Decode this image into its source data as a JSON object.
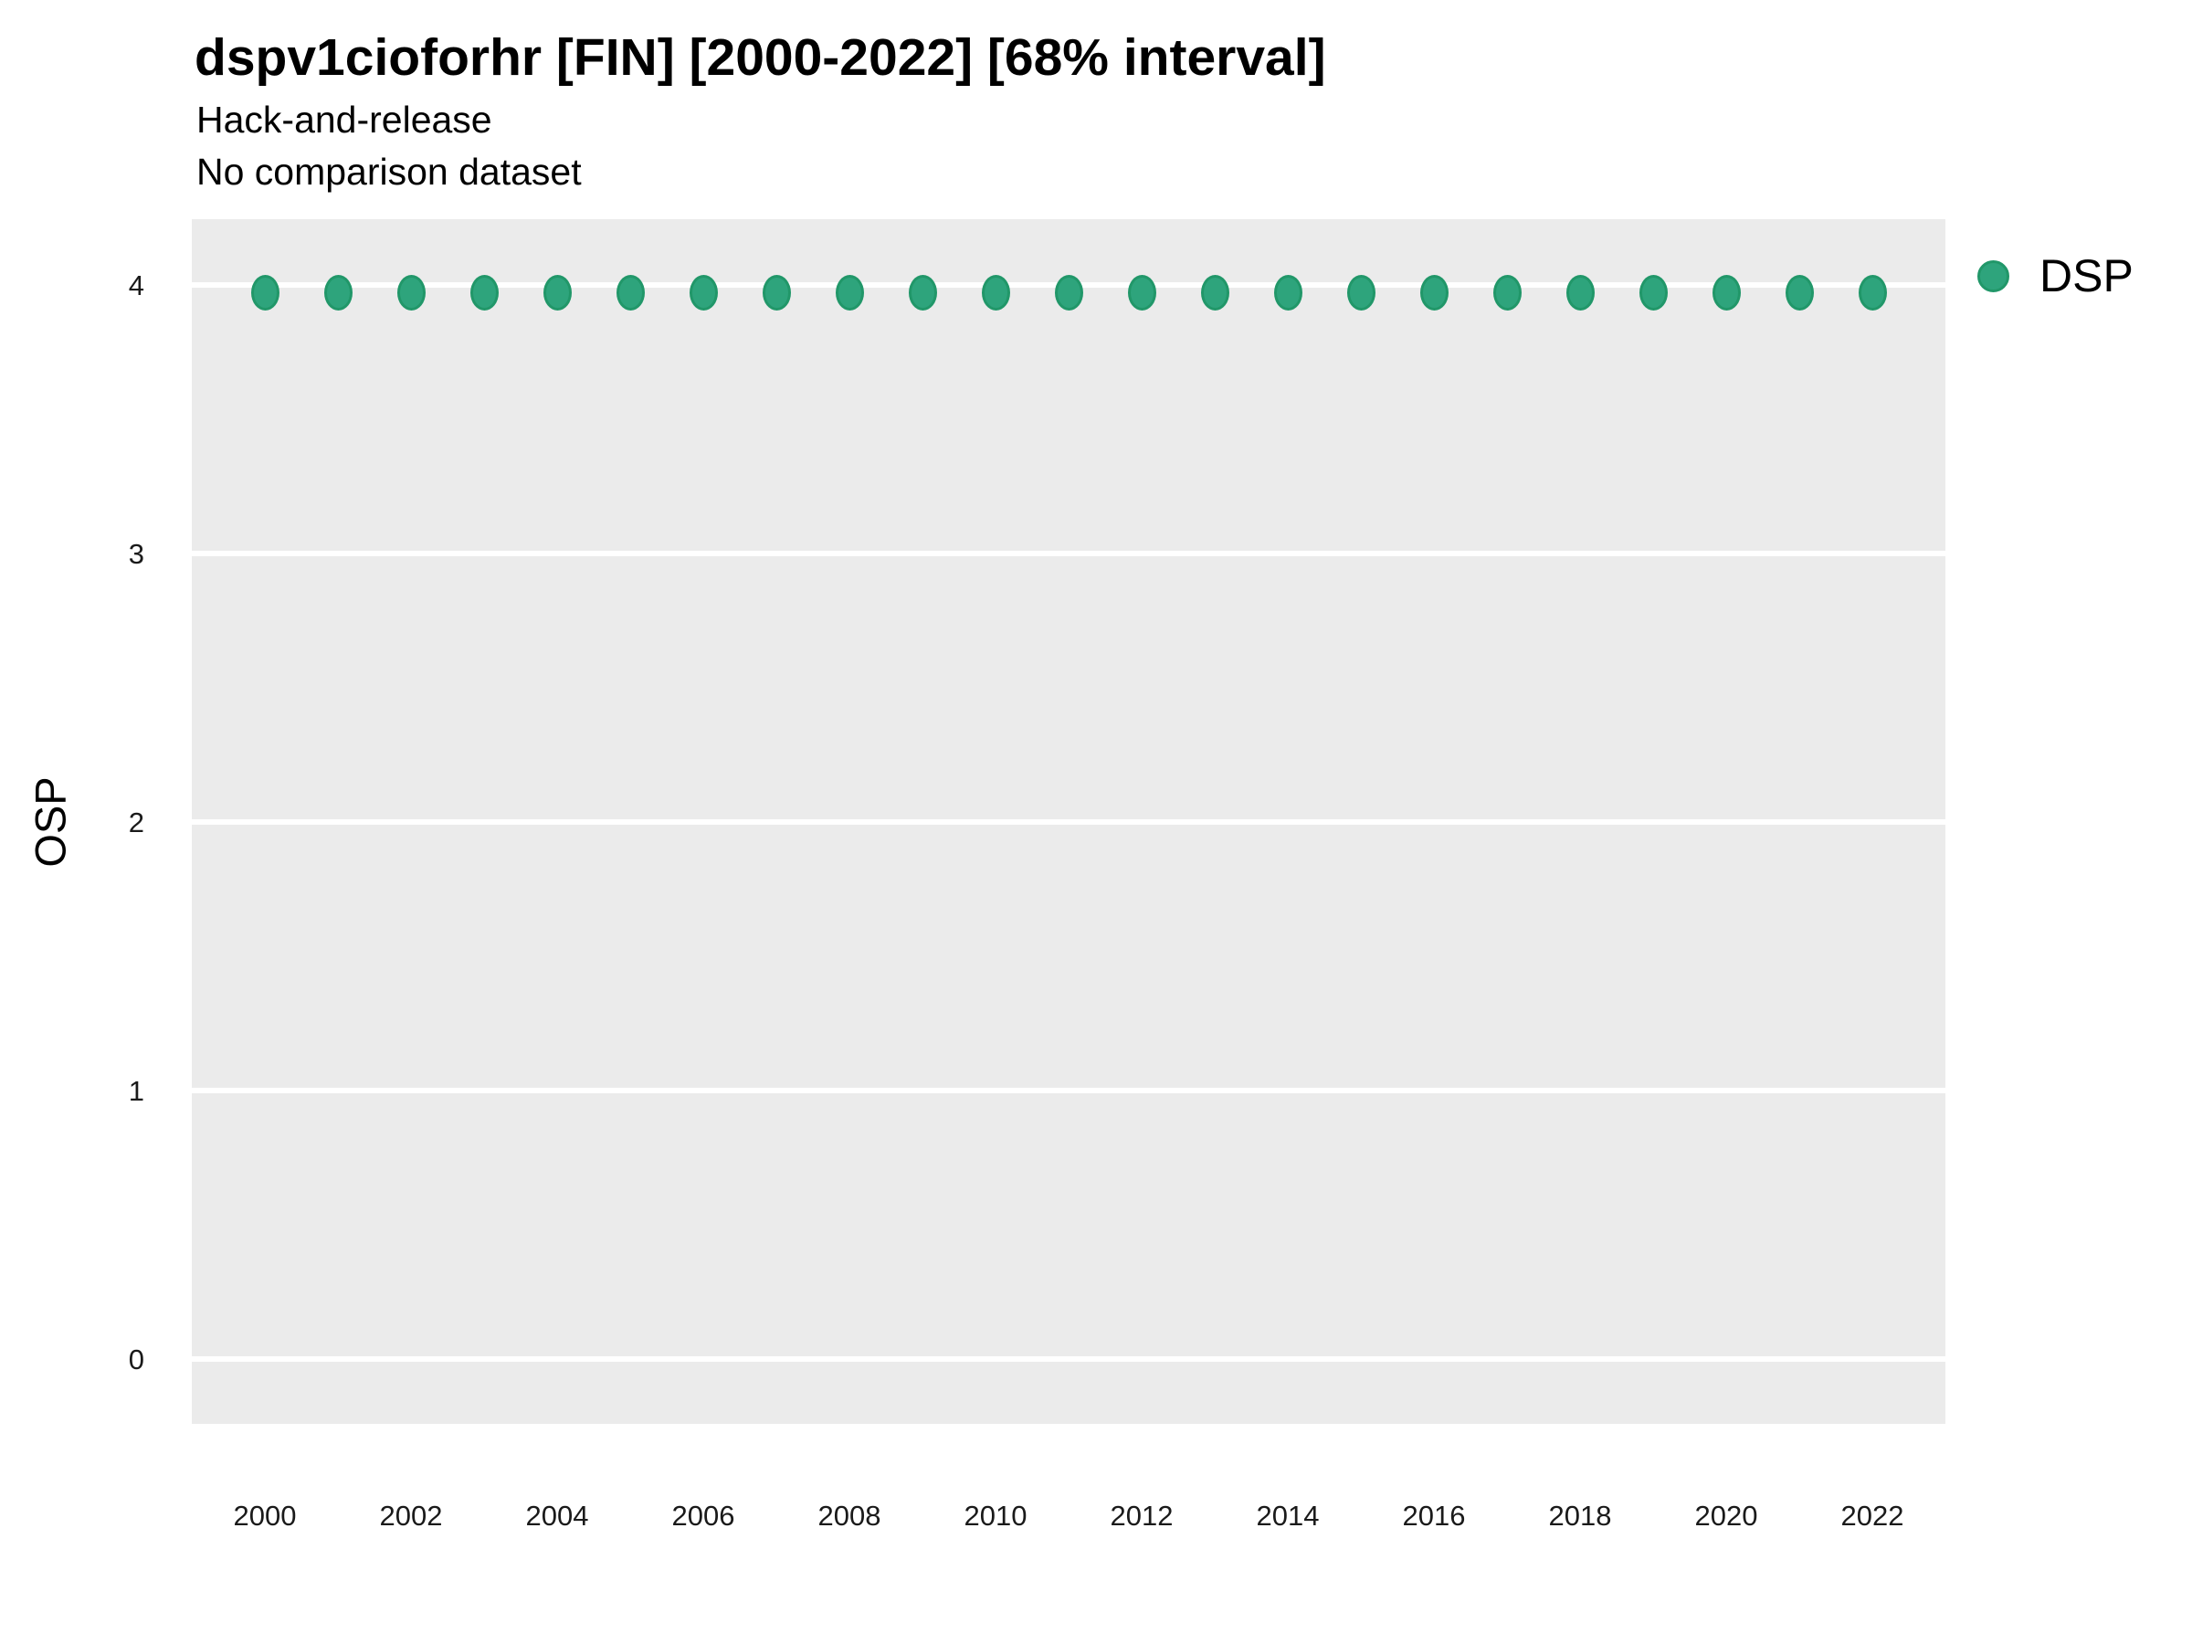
{
  "title": "dspv1cioforhr [FIN] [2000-2022] [68% interval]",
  "subtitle1": "Hack-and-release",
  "subtitle2": "No comparison dataset",
  "ylabel": "OSP",
  "legend": {
    "label": "DSP"
  },
  "colors": {
    "point_fill": "#2EA47C",
    "point_stroke": "#219769",
    "panel_bg": "#EBEBEB",
    "gridline": "#FFFFFF",
    "text": "#000000"
  },
  "chart_data": {
    "type": "scatter",
    "title": "dspv1cioforhr [FIN] [2000-2022] [68% interval]",
    "subtitle": [
      "Hack-and-release",
      "No comparison dataset"
    ],
    "xlabel": "",
    "ylabel": "OSP",
    "legend_entries": [
      "DSP"
    ],
    "legend_position": "right-top",
    "grid": "horizontal-major-only",
    "ylim": [
      -0.24,
      4.24
    ],
    "xlim": [
      1999,
      2023
    ],
    "yticks": [
      0,
      1,
      2,
      3,
      4
    ],
    "xticks": [
      2000,
      2002,
      2004,
      2006,
      2008,
      2010,
      2012,
      2014,
      2016,
      2018,
      2020,
      2022
    ],
    "series": [
      {
        "name": "DSP",
        "x": [
          2000,
          2001,
          2002,
          2003,
          2004,
          2005,
          2006,
          2007,
          2008,
          2009,
          2010,
          2011,
          2012,
          2013,
          2014,
          2015,
          2016,
          2017,
          2018,
          2019,
          2020,
          2021,
          2022
        ],
        "y": [
          3.97,
          3.97,
          3.97,
          3.97,
          3.97,
          3.97,
          3.97,
          3.97,
          3.97,
          3.97,
          3.97,
          3.97,
          3.97,
          3.97,
          3.97,
          3.97,
          3.97,
          3.97,
          3.97,
          3.97,
          3.97,
          3.97,
          3.97
        ]
      }
    ]
  }
}
